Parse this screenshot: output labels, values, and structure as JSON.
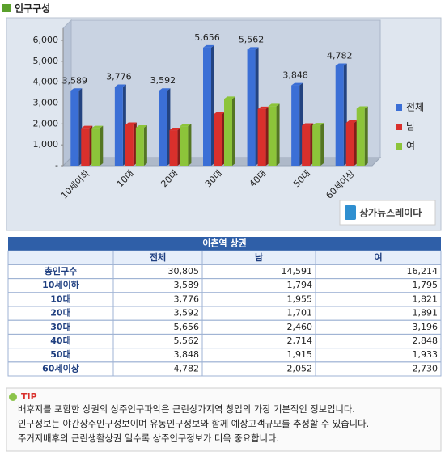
{
  "header": {
    "title": "인구구성"
  },
  "chart_data": {
    "type": "bar",
    "categories": [
      "10세이하",
      "10대",
      "20대",
      "30대",
      "40대",
      "50대",
      "60세이상"
    ],
    "series": [
      {
        "name": "전체",
        "color": "#3b6fd6",
        "values": [
          3589,
          3776,
          3592,
          5656,
          5562,
          3848,
          4782
        ],
        "value_labels": [
          "3,589",
          "3,776",
          "3,592",
          "5,656",
          "5,562",
          "3,848",
          "4,782"
        ]
      },
      {
        "name": "남",
        "color": "#d9302c",
        "values": [
          1794,
          1955,
          1701,
          2460,
          2714,
          1915,
          2052
        ]
      },
      {
        "name": "여",
        "color": "#8cc43a",
        "values": [
          1795,
          1821,
          1891,
          3196,
          2848,
          1933,
          2730
        ]
      }
    ],
    "ylim": [
      0,
      6000
    ],
    "yticks": [
      {
        "value": 0,
        "label": "-"
      },
      {
        "value": 1000,
        "label": "1,000"
      },
      {
        "value": 2000,
        "label": "2,000"
      },
      {
        "value": 3000,
        "label": "3,000"
      },
      {
        "value": 4000,
        "label": "4,000"
      },
      {
        "value": 5000,
        "label": "5,000"
      },
      {
        "value": 6000,
        "label": "6,000"
      }
    ],
    "grid": false,
    "legend": "right"
  },
  "watermark": "상가뉴스레이다",
  "table": {
    "title": "이촌역 상권",
    "columns": [
      "전체",
      "남",
      "여"
    ],
    "rows": [
      [
        "총인구수",
        "30,805",
        "14,591",
        "16,214"
      ],
      [
        "10세이하",
        "3,589",
        "1,794",
        "1,795"
      ],
      [
        "10대",
        "3,776",
        "1,955",
        "1,821"
      ],
      [
        "20대",
        "3,592",
        "1,701",
        "1,891"
      ],
      [
        "30대",
        "5,656",
        "2,460",
        "3,196"
      ],
      [
        "40대",
        "5,562",
        "2,714",
        "2,848"
      ],
      [
        "50대",
        "3,848",
        "1,915",
        "1,933"
      ],
      [
        "60세이상",
        "4,782",
        "2,052",
        "2,730"
      ]
    ]
  },
  "tip": {
    "label": "TIP",
    "lines": [
      "배후지를 포함한 상권의 상주인구파악은 근린상가지역 창업의 가장 기본적인 정보입니다.",
      "인구정보는 야간상주인구정보이며 유동인구정보와 함께 예상고객규모를 추정할 수 있습니다.",
      "주거지배후의 근린생활상권 일수록 상주인구정보가 더욱 중요합니다."
    ]
  }
}
